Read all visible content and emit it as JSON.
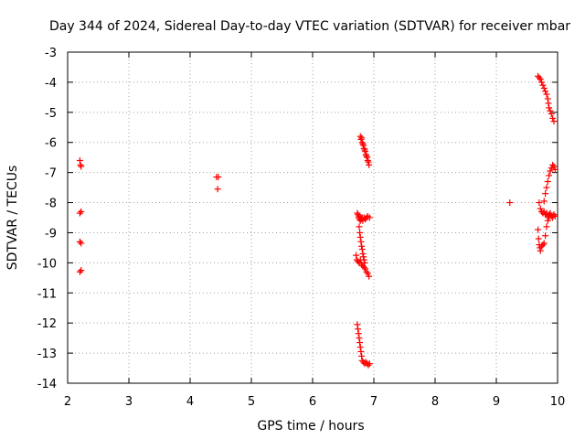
{
  "chart_data": {
    "type": "scatter",
    "title": "Day 344 of 2024, Sidereal Day-to-day VTEC variation (SDTVAR) for receiver mbar",
    "xlabel": "GPS time / hours",
    "ylabel": "SDTVAR / TECUs",
    "xlim": [
      2,
      10
    ],
    "ylim": [
      -14,
      -3
    ],
    "xticks": [
      "2",
      "3",
      "4",
      "5",
      "6",
      "7",
      "8",
      "9",
      "10"
    ],
    "yticks": [
      "-3",
      "-4",
      "-5",
      "-6",
      "-7",
      "-8",
      "-9",
      "-10",
      "-11",
      "-12",
      "-13",
      "-14"
    ],
    "grid": true,
    "marker_color": "#ff0000",
    "marker": "plus",
    "points": [
      [
        2.2,
        -6.6
      ],
      [
        2.21,
        -6.75
      ],
      [
        2.22,
        -6.8
      ],
      [
        2.2,
        -8.35
      ],
      [
        2.22,
        -8.3
      ],
      [
        2.2,
        -9.3
      ],
      [
        2.22,
        -9.35
      ],
      [
        2.2,
        -10.3
      ],
      [
        2.22,
        -10.25
      ],
      [
        4.43,
        -7.15
      ],
      [
        4.46,
        -7.15
      ],
      [
        4.45,
        -7.55
      ],
      [
        6.78,
        -5.8
      ],
      [
        6.79,
        -5.9
      ],
      [
        6.8,
        -5.85
      ],
      [
        6.81,
        -6.0
      ],
      [
        6.82,
        -6.05
      ],
      [
        6.83,
        -6.1
      ],
      [
        6.84,
        -6.2
      ],
      [
        6.85,
        -6.25
      ],
      [
        6.86,
        -6.3
      ],
      [
        6.87,
        -6.4
      ],
      [
        6.88,
        -6.45
      ],
      [
        6.89,
        -6.5
      ],
      [
        6.9,
        -6.6
      ],
      [
        6.91,
        -6.65
      ],
      [
        6.92,
        -6.75
      ],
      [
        6.73,
        -8.35
      ],
      [
        6.74,
        -8.4
      ],
      [
        6.75,
        -8.5
      ],
      [
        6.76,
        -8.45
      ],
      [
        6.77,
        -8.55
      ],
      [
        6.78,
        -8.6
      ],
      [
        6.79,
        -8.5
      ],
      [
        6.8,
        -8.55
      ],
      [
        6.81,
        -8.5
      ],
      [
        6.82,
        -8.6
      ],
      [
        6.84,
        -8.5
      ],
      [
        6.86,
        -8.55
      ],
      [
        6.88,
        -8.5
      ],
      [
        6.9,
        -8.45
      ],
      [
        6.93,
        -8.5
      ],
      [
        6.76,
        -8.8
      ],
      [
        6.77,
        -9.0
      ],
      [
        6.78,
        -9.15
      ],
      [
        6.79,
        -9.3
      ],
      [
        6.8,
        -9.45
      ],
      [
        6.81,
        -9.55
      ],
      [
        6.82,
        -9.7
      ],
      [
        6.83,
        -9.8
      ],
      [
        6.84,
        -9.9
      ],
      [
        6.85,
        -10.0
      ],
      [
        6.71,
        -9.75
      ],
      [
        6.72,
        -9.9
      ],
      [
        6.74,
        -9.95
      ],
      [
        6.76,
        -10.0
      ],
      [
        6.78,
        -9.9
      ],
      [
        6.8,
        -10.05
      ],
      [
        6.82,
        -10.1
      ],
      [
        6.84,
        -10.15
      ],
      [
        6.86,
        -10.2
      ],
      [
        6.88,
        -10.3
      ],
      [
        6.9,
        -10.35
      ],
      [
        6.92,
        -10.45
      ],
      [
        6.73,
        -12.05
      ],
      [
        6.74,
        -12.2
      ],
      [
        6.75,
        -12.35
      ],
      [
        6.76,
        -12.5
      ],
      [
        6.77,
        -12.65
      ],
      [
        6.78,
        -12.8
      ],
      [
        6.79,
        -12.95
      ],
      [
        6.8,
        -13.1
      ],
      [
        6.81,
        -13.25
      ],
      [
        6.83,
        -13.3
      ],
      [
        6.85,
        -13.35
      ],
      [
        6.87,
        -13.3
      ],
      [
        6.89,
        -13.35
      ],
      [
        6.91,
        -13.4
      ],
      [
        6.93,
        -13.35
      ],
      [
        9.22,
        -8.0
      ],
      [
        9.68,
        -3.8
      ],
      [
        9.7,
        -3.85
      ],
      [
        9.72,
        -3.9
      ],
      [
        9.74,
        -4.0
      ],
      [
        9.76,
        -4.1
      ],
      [
        9.78,
        -4.2
      ],
      [
        9.8,
        -4.3
      ],
      [
        9.82,
        -4.4
      ],
      [
        9.84,
        -4.55
      ],
      [
        9.85,
        -4.7
      ],
      [
        9.86,
        -4.85
      ],
      [
        9.88,
        -4.95
      ],
      [
        9.9,
        -5.05
      ],
      [
        9.92,
        -5.2
      ],
      [
        9.94,
        -5.3
      ],
      [
        9.7,
        -8.0
      ],
      [
        9.72,
        -8.2
      ],
      [
        9.74,
        -8.3
      ],
      [
        9.76,
        -8.35
      ],
      [
        9.78,
        -8.3
      ],
      [
        9.8,
        -8.4
      ],
      [
        9.82,
        -8.35
      ],
      [
        9.84,
        -8.45
      ],
      [
        9.86,
        -8.4
      ],
      [
        9.88,
        -8.35
      ],
      [
        9.9,
        -8.45
      ],
      [
        9.92,
        -8.5
      ],
      [
        9.94,
        -8.4
      ],
      [
        9.96,
        -8.45
      ],
      [
        9.78,
        -7.95
      ],
      [
        9.8,
        -7.7
      ],
      [
        9.82,
        -7.5
      ],
      [
        9.84,
        -7.3
      ],
      [
        9.86,
        -7.1
      ],
      [
        9.88,
        -6.95
      ],
      [
        9.9,
        -6.85
      ],
      [
        9.92,
        -6.75
      ],
      [
        9.94,
        -6.8
      ],
      [
        9.96,
        -6.9
      ],
      [
        9.68,
        -8.9
      ],
      [
        9.69,
        -9.2
      ],
      [
        9.7,
        -9.4
      ],
      [
        9.71,
        -9.5
      ],
      [
        9.72,
        -9.6
      ],
      [
        9.74,
        -9.45
      ],
      [
        9.76,
        -9.4
      ],
      [
        9.78,
        -9.35
      ],
      [
        9.8,
        -9.1
      ],
      [
        9.82,
        -8.8
      ],
      [
        9.84,
        -8.6
      ],
      [
        9.86,
        -8.5
      ],
      [
        9.88,
        -8.4
      ]
    ]
  }
}
